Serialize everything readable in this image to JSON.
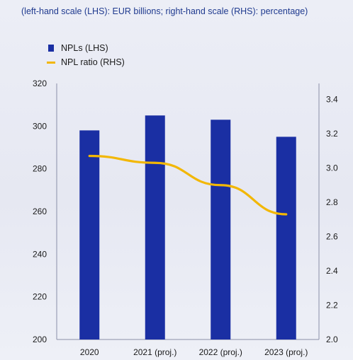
{
  "subtitle": "(left-hand scale (LHS): EUR billions; right-hand scale (RHS): percentage)",
  "legend": {
    "npls": "NPLs (LHS)",
    "ratio": "NPL ratio (RHS)"
  },
  "colors": {
    "bar": "#1a2fa3",
    "line": "#f2b705",
    "axis": "#8a8fa8"
  },
  "chart_data": {
    "type": "bar",
    "categories": [
      "2020",
      "2021 (proj.)",
      "2022 (proj.)",
      "2023 (proj.)"
    ],
    "series": [
      {
        "name": "NPLs (LHS)",
        "axis": "left",
        "kind": "bar",
        "values": [
          298,
          305,
          303,
          295
        ]
      },
      {
        "name": "NPL ratio (RHS)",
        "axis": "right",
        "kind": "line",
        "values": [
          3.07,
          3.03,
          2.9,
          2.73
        ]
      }
    ],
    "ylim_left": [
      200,
      320
    ],
    "yticks_left": [
      "200",
      "220",
      "240",
      "260",
      "280",
      "300",
      "320"
    ],
    "ylim_right": [
      2.0,
      3.5
    ],
    "yticks_right": [
      "2.0",
      "2.2",
      "2.4",
      "2.6",
      "2.8",
      "3.0",
      "3.2",
      "3.4"
    ],
    "grid": false,
    "legend_position": "top-left"
  }
}
